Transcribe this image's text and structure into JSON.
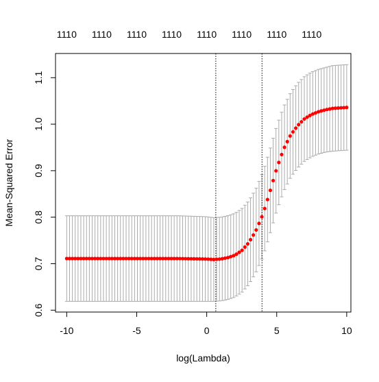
{
  "chart_data": {
    "type": "scatter",
    "xlabel": "log(Lambda)",
    "ylabel": "Mean-Squared Error",
    "xlim": [
      -10.8,
      10.3
    ],
    "ylim": [
      0.596,
      1.152
    ],
    "x_ticks": [
      -10,
      -5,
      0,
      5,
      10
    ],
    "y_ticks": [
      0.6,
      0.7,
      0.8,
      0.9,
      1.0,
      1.1
    ],
    "y_tick_labels": [
      "0.6",
      "0.7",
      "0.8",
      "0.9",
      "1.0",
      "1.1"
    ],
    "top_axis_ticks": [
      -10,
      -7.5,
      -5,
      -2.5,
      0,
      2.5,
      5,
      7.5
    ],
    "top_axis_labels": [
      "1110",
      "1110",
      "1110",
      "1110",
      "1110",
      "1110",
      "1110",
      "1110"
    ],
    "reference_lines": [
      {
        "x": 0.65,
        "style": "dotted"
      },
      {
        "x": 3.95,
        "style": "dotted"
      }
    ],
    "series": [
      {
        "marker_color": "#ff0000",
        "errorbar_color": "#aaaaaa",
        "x_range": [
          -10,
          10
        ],
        "n_points": 100,
        "curve_points_x": [
          -10,
          -8,
          -6,
          -4,
          -2,
          0,
          0.5,
          1,
          1.5,
          2,
          2.5,
          3,
          3.5,
          4,
          4.5,
          5,
          5.5,
          6,
          6.5,
          7,
          7.5,
          8,
          8.5,
          9,
          9.5,
          10
        ],
        "curve_points_y": [
          0.711,
          0.711,
          0.711,
          0.711,
          0.711,
          0.71,
          0.709,
          0.71,
          0.713,
          0.718,
          0.728,
          0.745,
          0.77,
          0.805,
          0.853,
          0.905,
          0.947,
          0.977,
          0.997,
          1.012,
          1.021,
          1.027,
          1.031,
          1.034,
          1.035,
          1.036
        ],
        "error_half_width": [
          0.092,
          0.092,
          0.092,
          0.092,
          0.092,
          0.091,
          0.09,
          0.09,
          0.09,
          0.09,
          0.09,
          0.09,
          0.09,
          0.091,
          0.091,
          0.091,
          0.091,
          0.091,
          0.091,
          0.091,
          0.091,
          0.091,
          0.091,
          0.092,
          0.092,
          0.092
        ]
      }
    ]
  }
}
